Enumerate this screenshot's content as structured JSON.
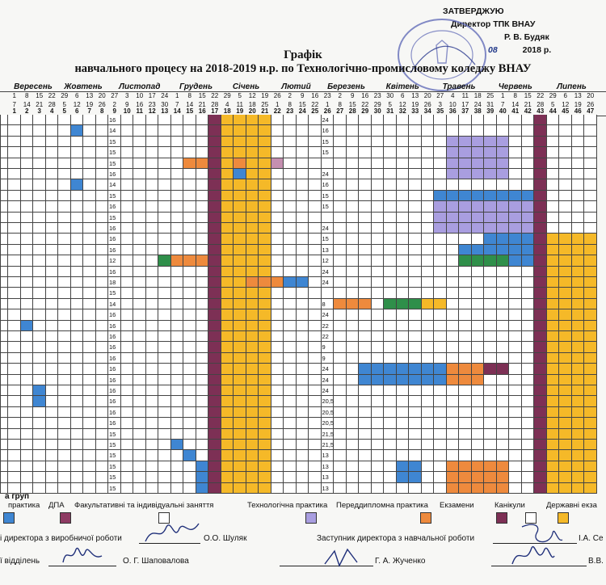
{
  "approval": {
    "line1": "ЗАТВЕРДЖУЮ",
    "line2": "Директор ТПК ВНАУ",
    "line3": "Р. В. Будяк",
    "line4_month": "08",
    "line4_year": "2018 р."
  },
  "title": {
    "main": "Графік",
    "sub": "навчального процесу  на 2018-2019 н.р. по Технологічно-промисловому коледжу ВНАУ"
  },
  "months": [
    "Вересень",
    "Жовтень",
    "Листопад",
    "Грудень",
    "Січень",
    "Лютий",
    "Березень",
    "Квітень",
    "Травень",
    "Червень",
    "Липень"
  ],
  "day_row1": [
    "1",
    "8",
    "15",
    "22",
    "29",
    "6",
    "13",
    "20",
    "27",
    "3",
    "10",
    "17",
    "24",
    "1",
    "8",
    "15",
    "22",
    "29",
    "5",
    "12",
    "19",
    "26",
    "2",
    "9",
    "16",
    "23",
    "2",
    "9",
    "16",
    "23",
    "30",
    "6",
    "13",
    "20",
    "27",
    "4",
    "11",
    "18",
    "25",
    "1",
    "8",
    "15",
    "22",
    "29",
    "6",
    "13",
    "20"
  ],
  "day_row2": [
    "7",
    "14",
    "21",
    "28",
    "5",
    "12",
    "19",
    "26",
    "2",
    "9",
    "16",
    "23",
    "30",
    "7",
    "14",
    "21",
    "28",
    "4",
    "11",
    "18",
    "25",
    "1",
    "8",
    "15",
    "22",
    "1",
    "8",
    "15",
    "22",
    "29",
    "5",
    "12",
    "19",
    "26",
    "3",
    "10",
    "17",
    "24",
    "31",
    "7",
    "14",
    "21",
    "28",
    "5",
    "12",
    "19",
    "26"
  ],
  "week_numbers": [
    "1",
    "2",
    "3",
    "4",
    "5",
    "6",
    "7",
    "8",
    "9",
    "10",
    "11",
    "12",
    "13",
    "14",
    "15",
    "16",
    "17",
    "18",
    "19",
    "20",
    "21",
    "22",
    "23",
    "24",
    "25",
    "26",
    "27",
    "28",
    "29",
    "30",
    "31",
    "32",
    "33",
    "34",
    "35",
    "36",
    "37",
    "38",
    "39",
    "40",
    "41",
    "42",
    "43",
    "44",
    "45",
    "46",
    "47"
  ],
  "sem1_weeks": [
    "16",
    "14",
    "15",
    "15",
    "15",
    "16",
    "14",
    "15",
    "16",
    "15",
    "16",
    "16",
    "16",
    "12",
    "16",
    "18",
    "15",
    "14",
    "16",
    "16",
    "16",
    "16",
    "16",
    "16",
    "16",
    "16",
    "16",
    "16",
    "16",
    "15",
    "15",
    "15",
    "15",
    "15",
    "15"
  ],
  "sem2_weeks": [
    "24",
    "16",
    "15",
    "15",
    "",
    "24",
    "16",
    "15",
    "15",
    "",
    "24",
    "15",
    "13",
    "12",
    "24",
    "24",
    "",
    "8",
    "24",
    "22",
    "22",
    "9",
    "9",
    "24",
    "24",
    "24",
    "20,5",
    "20,5",
    "20,5",
    "21,5",
    "21,5",
    "13",
    "13",
    "13",
    "13"
  ],
  "legend": {
    "heading": "а груп",
    "items": [
      "практика",
      "ДПА",
      "Факультативні та індивідуальні заняття",
      "Технологічна практика",
      "Переддипломна практика",
      "Екзамени",
      "Канікули",
      "Державні екза"
    ],
    "colors": [
      "#3f86d2",
      "#8e3b63",
      "#ffffff",
      "#a99ee0",
      "#ee8a3d",
      "#7d3055",
      "#ffffff",
      "#f5b928"
    ]
  },
  "signatures": {
    "left1_title": "і директора з виробничої роботи",
    "left1_name": "О.О. Шуляк",
    "right1_title": "Заступник директора з навчальної роботи",
    "right1_name": "І.А. Се",
    "left2_title": "ї відділень",
    "left2_name": "О. Г. Шаповалова",
    "mid2_name": "Г. А. Жученко",
    "right2_name": "В.В."
  }
}
